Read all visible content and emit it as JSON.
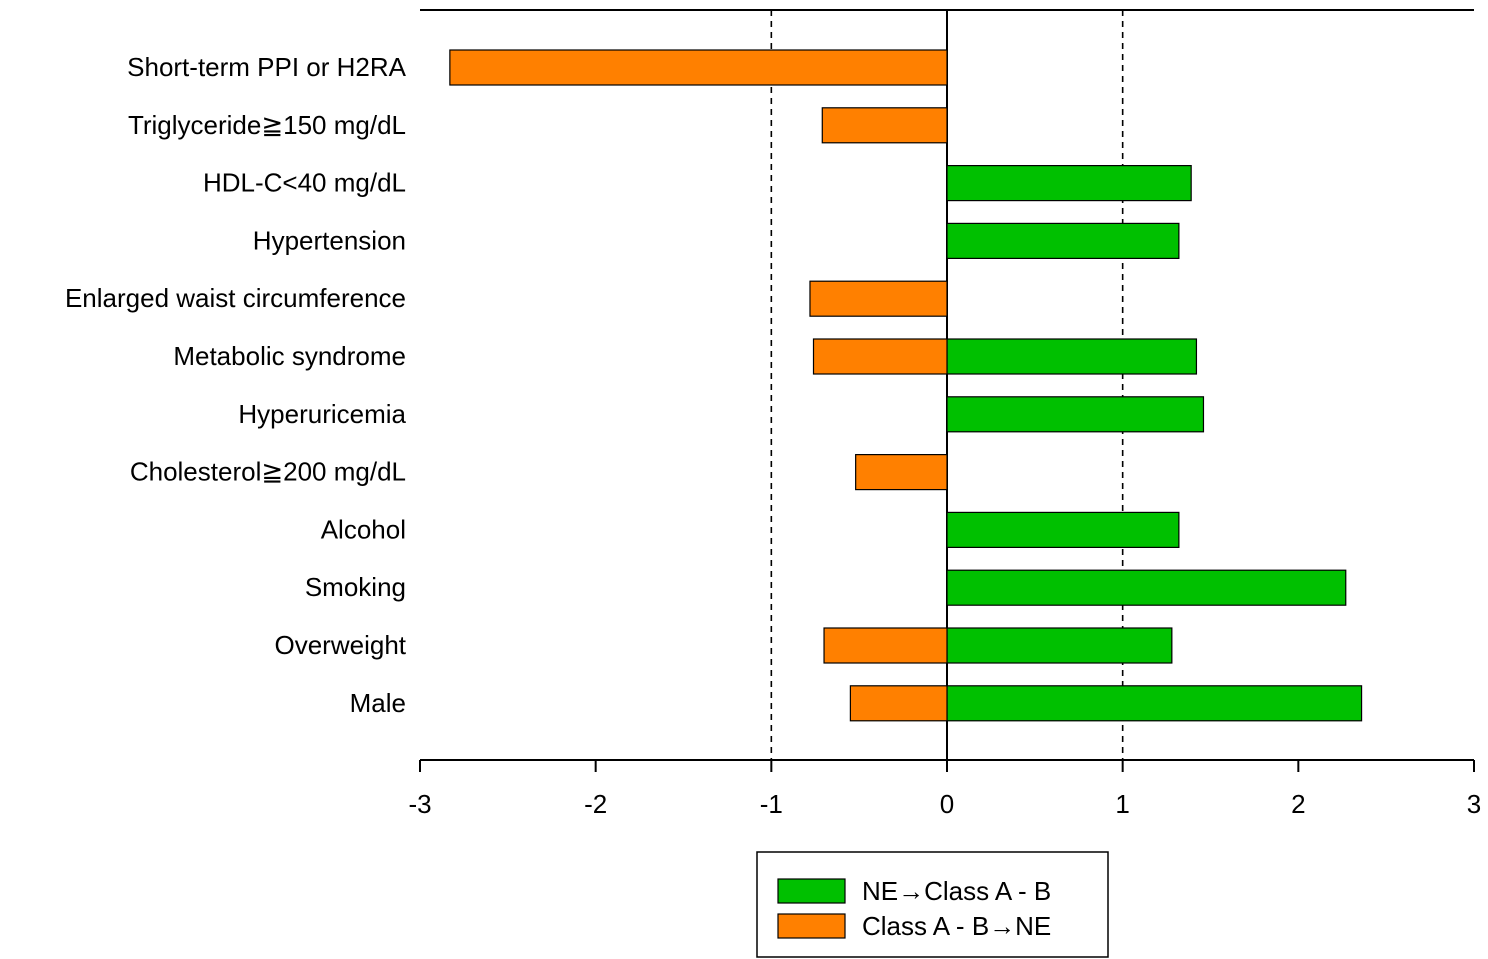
{
  "chart_data": {
    "type": "bar",
    "orientation": "horizontal",
    "categories": [
      "Short-term PPI or H2RA",
      "Triglyceride≧150 mg/dL",
      "HDL-C<40 mg/dL",
      "Hypertension",
      "Enlarged waist circumference",
      "Metabolic syndrome",
      "Hyperuricemia",
      "Cholesterol≧200 mg/dL",
      "Alcohol",
      "Smoking",
      "Overweight",
      "Male"
    ],
    "series": [
      {
        "name": "NE→Class A - B",
        "color": "#00c000",
        "values": [
          null,
          null,
          1.39,
          1.32,
          null,
          1.42,
          1.46,
          null,
          1.32,
          2.27,
          1.28,
          2.36
        ]
      },
      {
        "name": "Class A - B→NE",
        "color": "#ff8000",
        "values": [
          -2.83,
          -0.71,
          null,
          null,
          -0.78,
          -0.76,
          null,
          -0.52,
          null,
          null,
          -0.7,
          -0.55
        ]
      }
    ],
    "xlim": [
      -3,
      3
    ],
    "x_ticks": [
      "-3",
      "-2",
      "-1",
      "0",
      "1",
      "2",
      "3"
    ],
    "reference_lines": [
      -1,
      1
    ],
    "legend_position": "bottom-center",
    "grid": false
  }
}
